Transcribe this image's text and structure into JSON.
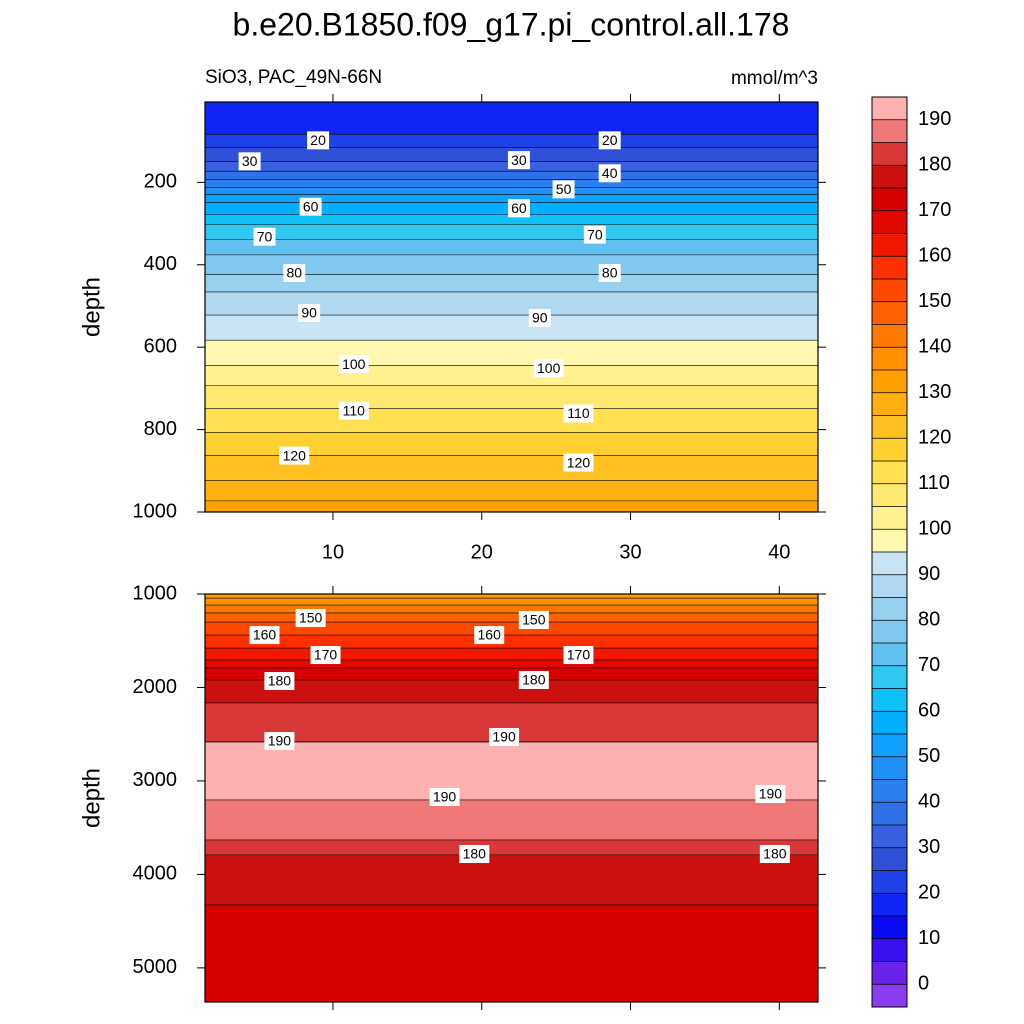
{
  "chart_data": {
    "type": "contour",
    "title": "b.e20.B1850.f09_g17.pi_control.all.178",
    "subtitle": "SiO3, PAC_49N-66N",
    "units": "mmol/m^3",
    "xlim": [
      1.4,
      42.6
    ],
    "xticks": [
      10,
      20,
      30,
      40
    ],
    "colorbar": {
      "boundaries": [
        0,
        5,
        10,
        15,
        20,
        25,
        30,
        35,
        40,
        45,
        50,
        55,
        60,
        65,
        70,
        75,
        80,
        85,
        90,
        95,
        100,
        105,
        110,
        115,
        120,
        125,
        130,
        135,
        140,
        145,
        150,
        155,
        160,
        165,
        170,
        175,
        180,
        185,
        190
      ],
      "ticks": [
        0,
        10,
        20,
        30,
        40,
        50,
        60,
        70,
        80,
        90,
        100,
        110,
        120,
        130,
        140,
        150,
        160,
        170,
        180,
        190
      ],
      "colors": [
        "#8a3cf0",
        "#6a22e8",
        "#3a10f0",
        "#0a0af5",
        "#1024f8",
        "#2040e8",
        "#3050d8",
        "#3860e0",
        "#3070e8",
        "#2a80f0",
        "#2090f8",
        "#10a0ff",
        "#00b0ff",
        "#10c0f8",
        "#30c8f0",
        "#60c0f0",
        "#80c8f0",
        "#98d0f0",
        "#b0d8f0",
        "#c8e4f4",
        "#fff8b0",
        "#fff090",
        "#ffe870",
        "#ffe050",
        "#ffd030",
        "#ffc020",
        "#ffb010",
        "#ffa000",
        "#ff9000",
        "#ff7800",
        "#ff6000",
        "#ff4800",
        "#ff3000",
        "#f01800",
        "#e00800",
        "#d80000",
        "#cc1010",
        "#d83838",
        "#f07878",
        "#ffb0b0"
      ]
    },
    "panels": [
      {
        "ylabel": "depth",
        "ylim": [
          5,
          1000
        ],
        "yticks": [
          200,
          400,
          600,
          800,
          1000
        ],
        "xtick_labels": true,
        "contours": [
          {
            "level": 20,
            "depth": 83
          },
          {
            "level": 25,
            "depth": 115
          },
          {
            "level": 30,
            "depth": 149
          },
          {
            "level": 35,
            "depth": 173
          },
          {
            "level": 40,
            "depth": 193
          },
          {
            "level": 45,
            "depth": 212
          },
          {
            "level": 50,
            "depth": 229
          },
          {
            "level": 55,
            "depth": 249
          },
          {
            "level": 60,
            "depth": 278
          },
          {
            "level": 65,
            "depth": 302
          },
          {
            "level": 70,
            "depth": 339
          },
          {
            "level": 75,
            "depth": 376
          },
          {
            "level": 80,
            "depth": 424
          },
          {
            "level": 85,
            "depth": 466
          },
          {
            "level": 90,
            "depth": 522
          },
          {
            "level": 95,
            "depth": 583
          },
          {
            "level": 100,
            "depth": 644
          },
          {
            "level": 105,
            "depth": 693
          },
          {
            "level": 110,
            "depth": 749
          },
          {
            "level": 115,
            "depth": 807
          },
          {
            "level": 120,
            "depth": 863
          },
          {
            "level": 125,
            "depth": 924
          },
          {
            "level": 130,
            "depth": 973
          }
        ],
        "contour_labels": [
          {
            "text": "20",
            "x": 9.0,
            "depth": 98
          },
          {
            "text": "30",
            "x": 4.4,
            "depth": 149
          },
          {
            "text": "20",
            "x": 28.6,
            "depth": 98
          },
          {
            "text": "30",
            "x": 22.5,
            "depth": 146
          },
          {
            "text": "40",
            "x": 28.6,
            "depth": 178
          },
          {
            "text": "50",
            "x": 25.5,
            "depth": 217
          },
          {
            "text": "60",
            "x": 8.5,
            "depth": 259
          },
          {
            "text": "60",
            "x": 22.5,
            "depth": 263
          },
          {
            "text": "70",
            "x": 5.4,
            "depth": 332
          },
          {
            "text": "70",
            "x": 27.6,
            "depth": 327
          },
          {
            "text": "80",
            "x": 7.4,
            "depth": 420
          },
          {
            "text": "80",
            "x": 28.6,
            "depth": 420
          },
          {
            "text": "90",
            "x": 8.4,
            "depth": 517
          },
          {
            "text": "90",
            "x": 23.9,
            "depth": 529
          },
          {
            "text": "100",
            "x": 11.4,
            "depth": 641
          },
          {
            "text": "100",
            "x": 24.5,
            "depth": 651
          },
          {
            "text": "110",
            "x": 11.4,
            "depth": 754
          },
          {
            "text": "110",
            "x": 26.5,
            "depth": 761
          },
          {
            "text": "120",
            "x": 7.4,
            "depth": 863
          },
          {
            "text": "120",
            "x": 26.5,
            "depth": 880
          }
        ]
      },
      {
        "ylabel": "depth",
        "ylim": [
          1000,
          5365
        ],
        "yticks": [
          1000,
          2000,
          3000,
          4000,
          5000
        ],
        "xtick_labels": false,
        "contours": [
          {
            "level": 135,
            "depth": 1043
          },
          {
            "level": 140,
            "depth": 1118
          },
          {
            "level": 145,
            "depth": 1203
          },
          {
            "level": 150,
            "depth": 1300
          },
          {
            "level": 155,
            "depth": 1439
          },
          {
            "level": 160,
            "depth": 1578
          },
          {
            "level": 165,
            "depth": 1706
          },
          {
            "level": 170,
            "depth": 1791
          },
          {
            "level": 175,
            "depth": 1920
          },
          {
            "level": 180,
            "depth": 2166
          },
          {
            "level": 185,
            "depth": 2583
          },
          {
            "level": 190,
            "depth": 2583
          },
          {
            "level": 190,
            "depth": 3203
          },
          {
            "level": 185,
            "depth": 3631
          },
          {
            "level": 180,
            "depth": 3791
          },
          {
            "level": 175,
            "depth": 4326
          }
        ],
        "contour_labels": [
          {
            "text": "150",
            "x": 8.5,
            "depth": 1257
          },
          {
            "text": "160",
            "x": 5.4,
            "depth": 1439
          },
          {
            "text": "170",
            "x": 9.5,
            "depth": 1653
          },
          {
            "text": "180",
            "x": 6.4,
            "depth": 1931
          },
          {
            "text": "190",
            "x": 6.4,
            "depth": 2573
          },
          {
            "text": "160",
            "x": 20.5,
            "depth": 1439
          },
          {
            "text": "150",
            "x": 23.5,
            "depth": 1278
          },
          {
            "text": "170",
            "x": 26.5,
            "depth": 1653
          },
          {
            "text": "180",
            "x": 23.5,
            "depth": 1920
          },
          {
            "text": "190",
            "x": 21.5,
            "depth": 2530
          },
          {
            "text": "190",
            "x": 17.5,
            "depth": 3172
          },
          {
            "text": "180",
            "x": 19.5,
            "depth": 3782
          },
          {
            "text": "190",
            "x": 39.4,
            "depth": 3140
          },
          {
            "text": "180",
            "x": 39.7,
            "depth": 3782
          }
        ]
      }
    ]
  }
}
